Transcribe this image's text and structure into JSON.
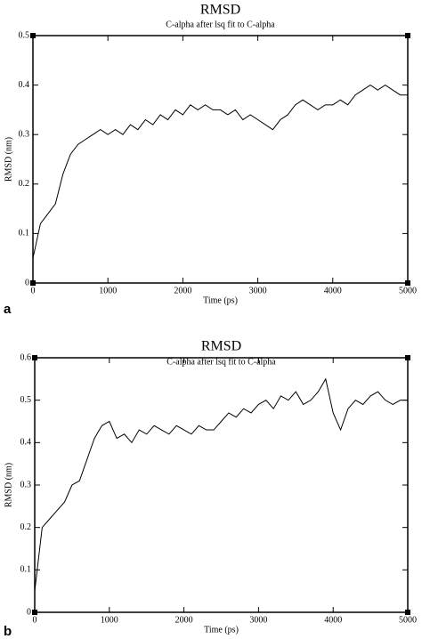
{
  "chart_data": [
    {
      "type": "line",
      "title": "RMSD",
      "subtitle": "C-alpha after lsq fit to C-alpha",
      "xlabel": "Time (ps)",
      "ylabel": "RMSD (nm)",
      "panel_label": "a",
      "x": [
        0,
        100,
        200,
        300,
        400,
        500,
        600,
        700,
        800,
        900,
        1000,
        1100,
        1200,
        1300,
        1400,
        1500,
        1600,
        1700,
        1800,
        1900,
        2000,
        2100,
        2200,
        2300,
        2400,
        2500,
        2600,
        2700,
        2800,
        2900,
        3000,
        3100,
        3200,
        3300,
        3400,
        3500,
        3600,
        3700,
        3800,
        3900,
        4000,
        4100,
        4200,
        4300,
        4400,
        4500,
        4600,
        4700,
        4800,
        4900,
        5000
      ],
      "series": [
        {
          "name": "RMSD",
          "color": "#000000",
          "values": [
            0.05,
            0.12,
            0.14,
            0.16,
            0.22,
            0.26,
            0.28,
            0.29,
            0.3,
            0.31,
            0.3,
            0.31,
            0.3,
            0.32,
            0.31,
            0.33,
            0.32,
            0.34,
            0.33,
            0.35,
            0.34,
            0.36,
            0.35,
            0.36,
            0.35,
            0.35,
            0.34,
            0.35,
            0.33,
            0.34,
            0.33,
            0.32,
            0.31,
            0.33,
            0.34,
            0.36,
            0.37,
            0.36,
            0.35,
            0.36,
            0.36,
            0.37,
            0.36,
            0.38,
            0.39,
            0.4,
            0.39,
            0.4,
            0.39,
            0.38,
            0.38
          ]
        }
      ],
      "xlim": [
        0,
        5000
      ],
      "xticks": [
        0,
        1000,
        2000,
        3000,
        4000,
        5000
      ],
      "ylim": [
        0,
        0.5
      ],
      "yticks": [
        0,
        0.1,
        0.2,
        0.3,
        0.4,
        0.5
      ]
    },
    {
      "type": "line",
      "title": "RMSD",
      "subtitle": "C-alpha after lsq fit to C-alpha",
      "xlabel": "Time (ps)",
      "ylabel": "RMSD (nm)",
      "panel_label": "b",
      "x": [
        0,
        100,
        200,
        300,
        400,
        500,
        600,
        700,
        800,
        900,
        1000,
        1100,
        1200,
        1300,
        1400,
        1500,
        1600,
        1700,
        1800,
        1900,
        2000,
        2100,
        2200,
        2300,
        2400,
        2500,
        2600,
        2700,
        2800,
        2900,
        3000,
        3100,
        3200,
        3300,
        3400,
        3500,
        3600,
        3700,
        3800,
        3900,
        4000,
        4100,
        4200,
        4300,
        4400,
        4500,
        4600,
        4700,
        4800,
        4900,
        5000
      ],
      "series": [
        {
          "name": "RMSD",
          "color": "#000000",
          "values": [
            0.05,
            0.2,
            0.22,
            0.24,
            0.26,
            0.3,
            0.31,
            0.36,
            0.41,
            0.44,
            0.45,
            0.41,
            0.42,
            0.4,
            0.43,
            0.42,
            0.44,
            0.43,
            0.42,
            0.44,
            0.43,
            0.42,
            0.44,
            0.43,
            0.43,
            0.45,
            0.47,
            0.46,
            0.48,
            0.47,
            0.49,
            0.5,
            0.48,
            0.51,
            0.5,
            0.52,
            0.49,
            0.5,
            0.52,
            0.55,
            0.47,
            0.43,
            0.48,
            0.5,
            0.49,
            0.51,
            0.52,
            0.5,
            0.49,
            0.5,
            0.5
          ]
        }
      ],
      "xlim": [
        0,
        5000
      ],
      "xticks": [
        0,
        1000,
        2000,
        3000,
        4000,
        5000
      ],
      "ylim": [
        0,
        0.6
      ],
      "yticks": [
        0,
        0.1,
        0.2,
        0.3,
        0.4,
        0.5,
        0.6
      ]
    }
  ]
}
